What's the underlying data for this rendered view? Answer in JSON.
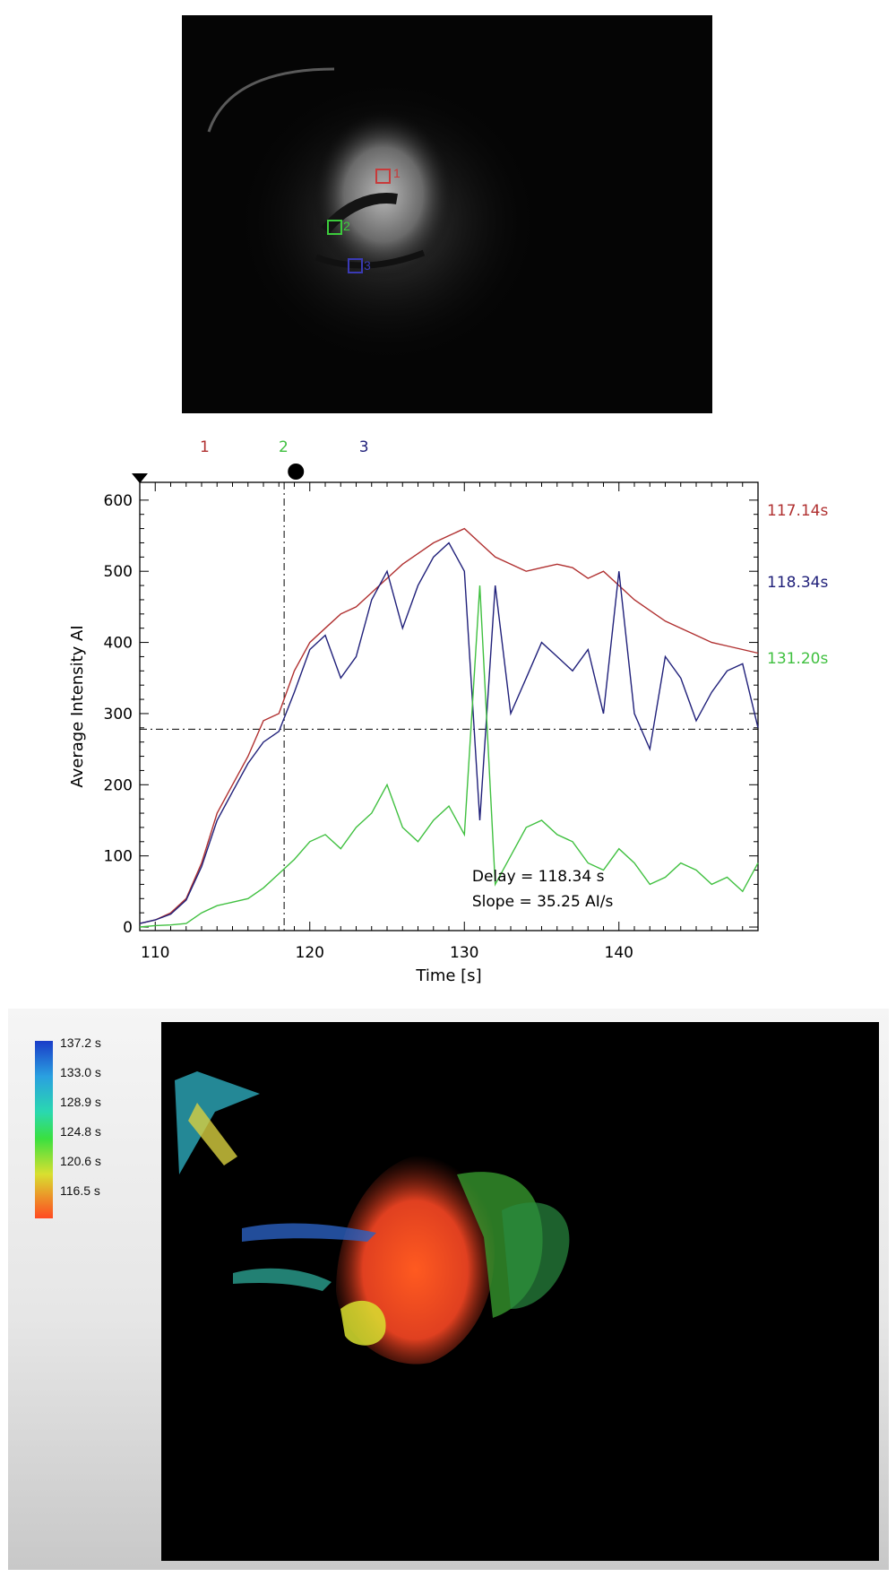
{
  "top_image": {
    "roi_labels": [
      {
        "label": "1",
        "color": "#c83a3a"
      },
      {
        "label": "2",
        "color": "#3ccc3c"
      },
      {
        "label": "3",
        "color": "#3a3ab4"
      }
    ]
  },
  "chart_data": {
    "type": "line",
    "xlabel": "Time [s]",
    "ylabel": "Average Intensity AI",
    "xlim": [
      109,
      149
    ],
    "ylim": [
      -5,
      625
    ],
    "xticks": [
      110,
      120,
      130,
      140
    ],
    "yticks": [
      0,
      100,
      200,
      300,
      400,
      500,
      600
    ],
    "threshold_y": 278,
    "marker_x": 118.34,
    "top_markers": [
      {
        "label": "1",
        "color": "#b03030"
      },
      {
        "label": "2",
        "color": "#40c040"
      },
      {
        "label": "3",
        "color": "#20207a"
      }
    ],
    "right_labels": [
      {
        "text": "117.14s",
        "color": "#b03030"
      },
      {
        "text": "118.34s",
        "color": "#20207a"
      },
      {
        "text": "131.20s",
        "color": "#40c040"
      }
    ],
    "annotation": {
      "delay": "Delay = 118.34 s",
      "slope": "Slope = 35.25 AI/s"
    },
    "series": [
      {
        "color": "#b03030",
        "x": [
          109,
          110,
          111,
          112,
          113,
          114,
          115,
          116,
          117,
          118,
          119,
          120,
          121,
          122,
          123,
          124,
          125,
          126,
          127,
          128,
          129,
          130,
          131,
          132,
          133,
          134,
          135,
          136,
          137,
          138,
          139,
          140,
          141,
          142,
          143,
          144,
          145,
          146,
          147,
          148,
          149
        ],
        "y": [
          5,
          10,
          20,
          40,
          90,
          160,
          200,
          240,
          290,
          300,
          360,
          400,
          420,
          440,
          450,
          470,
          490,
          510,
          525,
          540,
          550,
          560,
          540,
          520,
          510,
          500,
          505,
          510,
          505,
          490,
          500,
          480,
          460,
          445,
          430,
          420,
          410,
          400,
          395,
          390,
          385
        ]
      },
      {
        "color": "#20207a",
        "x": [
          109,
          110,
          111,
          112,
          113,
          114,
          115,
          116,
          117,
          118,
          119,
          120,
          121,
          122,
          123,
          124,
          125,
          126,
          127,
          128,
          129,
          130,
          131,
          132,
          133,
          134,
          135,
          136,
          137,
          138,
          139,
          140,
          141,
          142,
          143,
          144,
          145,
          146,
          147,
          148,
          149
        ],
        "y": [
          5,
          10,
          18,
          38,
          85,
          150,
          190,
          230,
          260,
          275,
          330,
          390,
          410,
          350,
          380,
          460,
          500,
          420,
          480,
          520,
          540,
          500,
          150,
          480,
          300,
          350,
          400,
          380,
          360,
          390,
          300,
          500,
          300,
          250,
          380,
          350,
          290,
          330,
          360,
          370,
          280
        ]
      },
      {
        "color": "#40c040",
        "x": [
          109,
          110,
          111,
          112,
          113,
          114,
          115,
          116,
          117,
          118,
          119,
          120,
          121,
          122,
          123,
          124,
          125,
          126,
          127,
          128,
          129,
          130,
          131,
          132,
          133,
          134,
          135,
          136,
          137,
          138,
          139,
          140,
          141,
          142,
          143,
          144,
          145,
          146,
          147,
          148,
          149
        ],
        "y": [
          0,
          2,
          3,
          5,
          20,
          30,
          35,
          40,
          55,
          75,
          95,
          120,
          130,
          110,
          140,
          160,
          200,
          140,
          120,
          150,
          170,
          130,
          480,
          60,
          100,
          140,
          150,
          130,
          120,
          90,
          80,
          110,
          90,
          60,
          70,
          90,
          80,
          60,
          70,
          50,
          90
        ]
      }
    ]
  },
  "colorbar": {
    "labels": [
      "137.2 s",
      "133.0 s",
      "128.9 s",
      "124.8 s",
      "120.6 s",
      "116.5 s"
    ]
  }
}
